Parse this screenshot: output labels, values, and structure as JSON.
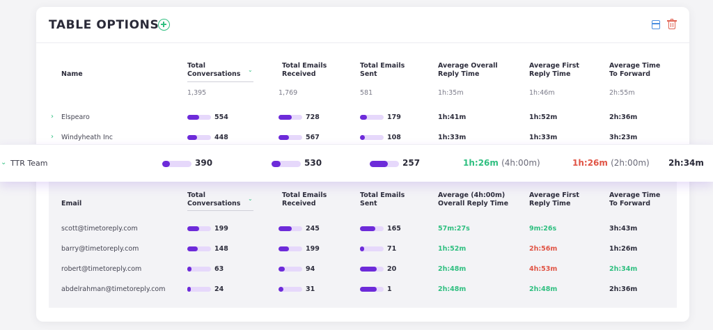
{
  "header": {
    "title": "TABLE OPTIONS"
  },
  "top_table": {
    "columns": [
      {
        "l1": "Name",
        "l2": ""
      },
      {
        "l1": "Total",
        "l2": "Conversations"
      },
      {
        "l1": "Total Emails",
        "l2": "Received"
      },
      {
        "l1": "Total Emails",
        "l2": "Sent"
      },
      {
        "l1": "Average Overall",
        "l2": "Reply Time"
      },
      {
        "l1": "Average First",
        "l2": "Reply Time"
      },
      {
        "l1": "Average Time",
        "l2": "To Forward"
      }
    ],
    "totals": [
      "1,395",
      "1,769",
      "581",
      "1h:35m",
      "1h:46m",
      "2h:55m"
    ],
    "rows": [
      {
        "name": "Elspearo",
        "conv": "554",
        "recv": "728",
        "sent": "179",
        "overall": "1h:41m",
        "first": "1h:52m",
        "forward": "2h:36m",
        "conv_f": 0.5,
        "recv_f": 0.55,
        "sent_f": 0.3
      },
      {
        "name": "Windyheath Inc",
        "conv": "448",
        "recv": "567",
        "sent": "108",
        "overall": "1h:33m",
        "first": "1h:33m",
        "forward": "3h:23m",
        "conv_f": 0.42,
        "recv_f": 0.45,
        "sent_f": 0.2
      }
    ]
  },
  "team": {
    "name": "TTR Team",
    "conv": "390",
    "recv": "530",
    "sent": "257",
    "overall": "1h:26m",
    "overall_target": "(4h:00m)",
    "first": "1h:26m",
    "first_target": "(2h:00m)",
    "forward": "2h:34m",
    "conv_f": 0.25,
    "recv_f": 0.32,
    "sent_f": 0.62
  },
  "sub_table": {
    "columns": [
      {
        "l1": "Email",
        "l2": ""
      },
      {
        "l1": "Total",
        "l2": "Conversations"
      },
      {
        "l1": "Total Emails",
        "l2": "Received"
      },
      {
        "l1": "Total Emails",
        "l2": "Sent"
      },
      {
        "l1": "Average (4h:00m)",
        "l2": "Overall Reply Time"
      },
      {
        "l1": "Average First",
        "l2": "Reply Time"
      },
      {
        "l1": "Average Time",
        "l2": "To Forward"
      }
    ],
    "rows": [
      {
        "email": "scott@timetoreply.com",
        "conv": "199",
        "recv": "245",
        "sent": "165",
        "overall": "57m:27s",
        "first": "9m:26s",
        "forward": "3h:43m",
        "conv_f": 0.5,
        "recv_f": 0.55,
        "sent_f": 0.65
      },
      {
        "email": "barry@timetoreply.com",
        "conv": "148",
        "recv": "199",
        "sent": "71",
        "overall": "1h:52m",
        "first": "2h:56m",
        "forward": "1h:26m",
        "conv_f": 0.45,
        "recv_f": 0.45,
        "sent_f": 0.18
      },
      {
        "email": "robert@timetoreply.com",
        "conv": "63",
        "recv": "94",
        "sent": "20",
        "overall": "2h:48m",
        "first": "4h:53m",
        "forward": "2h:34m",
        "conv_f": 0.18,
        "recv_f": 0.25,
        "sent_f": 0.7
      },
      {
        "email": "abdelrahman@timetoreply.com",
        "conv": "24",
        "recv": "31",
        "sent": "1",
        "overall": "2h:48m",
        "first": "2h:48m",
        "forward": "2h:36m",
        "conv_f": 0.15,
        "recv_f": 0.22,
        "sent_f": 0.7
      }
    ]
  },
  "colors": {
    "accent": "#6d2bd9",
    "bar_track": "#e6d8fb",
    "green": "#2fbf80",
    "red": "#e05445"
  }
}
